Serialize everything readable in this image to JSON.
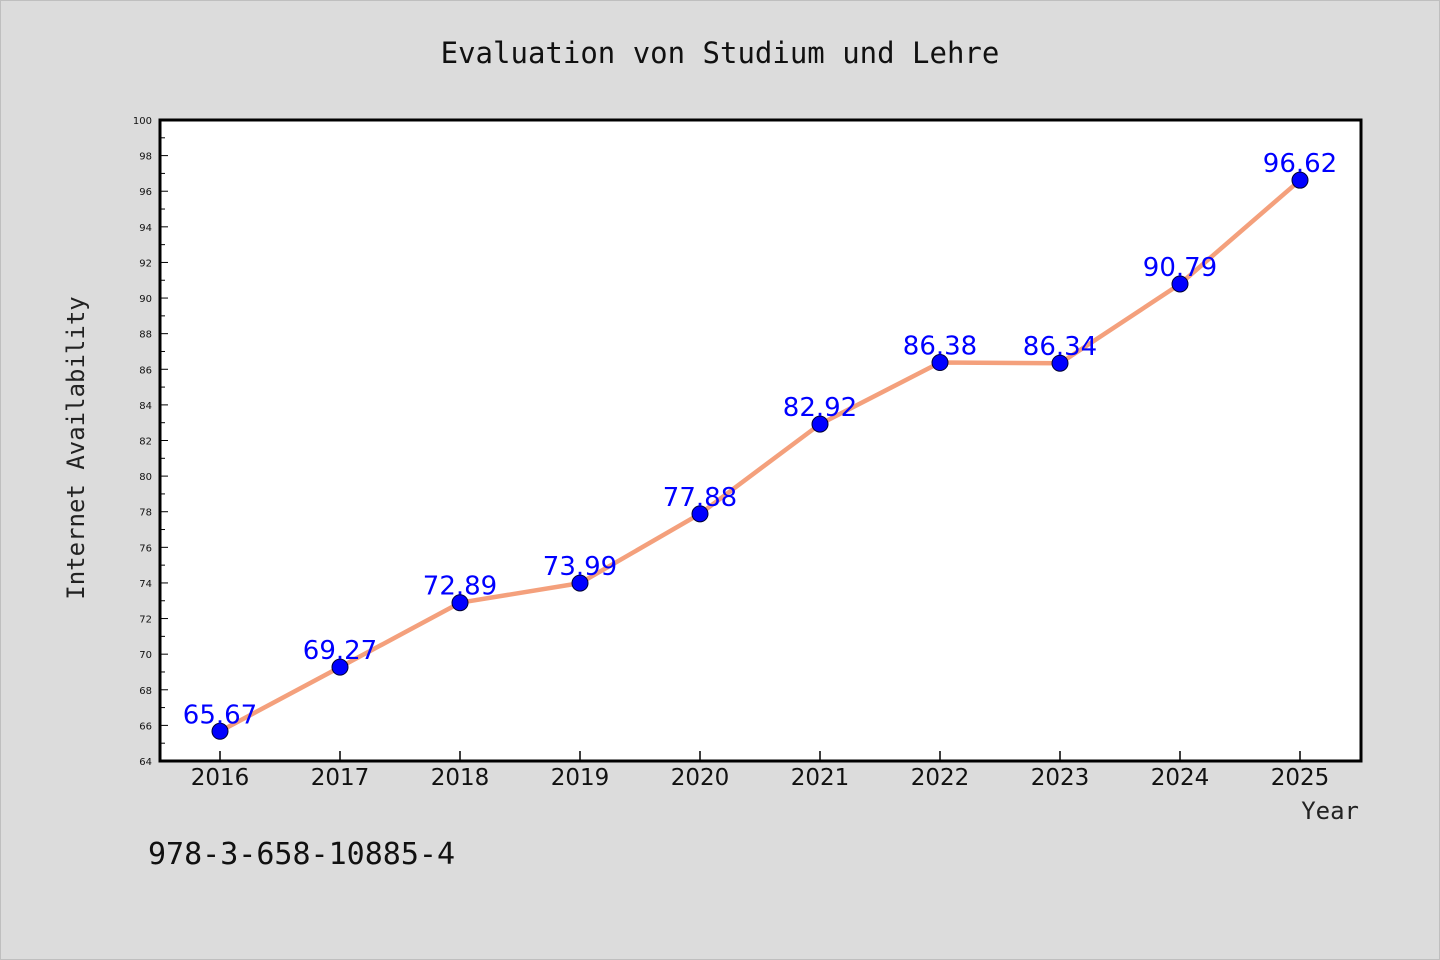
{
  "chart_data": {
    "type": "line",
    "title": "Evaluation von Studium und Lehre",
    "xlabel": "Year",
    "ylabel": "Internet Availability",
    "categories": [
      "2016",
      "2017",
      "2018",
      "2019",
      "2020",
      "2021",
      "2022",
      "2023",
      "2024",
      "2025"
    ],
    "series": [
      {
        "values": [
          65.67,
          69.27,
          72.89,
          73.99,
          77.88,
          82.92,
          86.38,
          86.34,
          90.79,
          96.62
        ],
        "labels": [
          "65.67",
          "69.27",
          "72.89",
          "73.99",
          "77.88",
          "82.92",
          "86.38",
          "86.34",
          "90.79",
          "96.62"
        ],
        "line_color": "#f4a07c",
        "marker_color": "#0000ff"
      }
    ],
    "ylim": [
      64,
      100
    ],
    "yticks": [
      "64",
      "66",
      "68",
      "70",
      "72",
      "74",
      "76",
      "78",
      "80",
      "82",
      "84",
      "86",
      "88",
      "90",
      "92",
      "94",
      "96",
      "98",
      "100"
    ],
    "grid": false,
    "legend": "none"
  },
  "footer_text": "978-3-658-10885-4"
}
